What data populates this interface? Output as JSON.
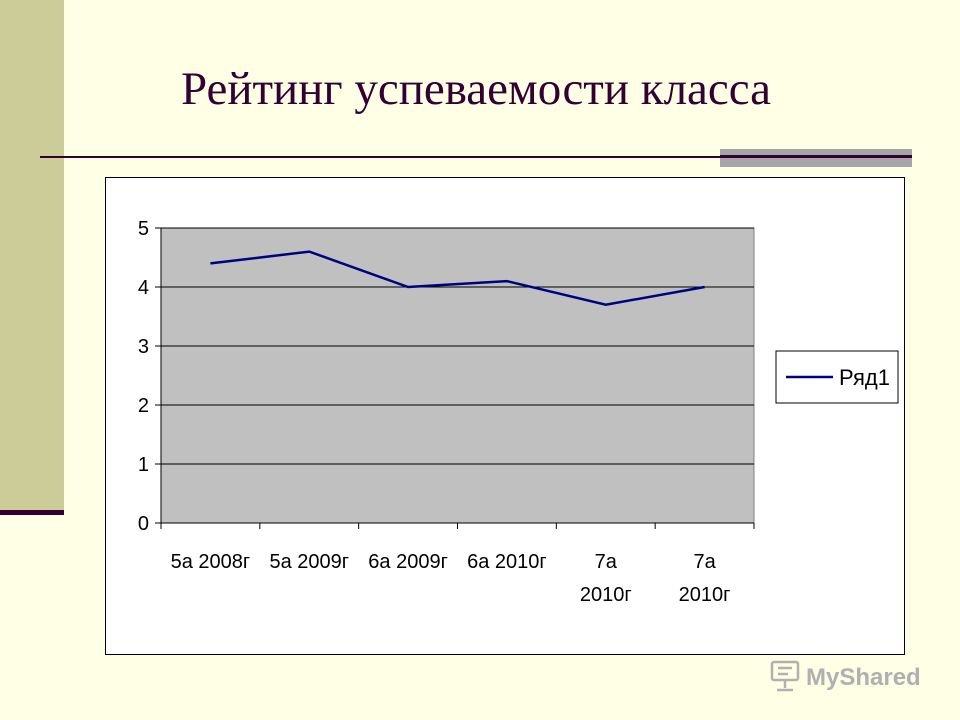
{
  "slide": {
    "title": "Рейтинг успеваемости класса"
  },
  "watermark": {
    "text": "MyShared"
  },
  "colors": {
    "background": "#ffffe5",
    "band": "#cccc99",
    "title": "#330033",
    "plot_area": "#c0c0c0",
    "series_line": "#000080"
  },
  "chart_data": {
    "type": "line",
    "title": "",
    "xlabel": "",
    "ylabel": "",
    "categories": [
      "5а 2008г",
      "5а 2009г",
      "6а 2009г",
      "6а 2010г",
      "7а 2010г",
      "7а 2010г"
    ],
    "category_lines": [
      [
        "5а 2008г"
      ],
      [
        "5а 2009г"
      ],
      [
        "6а 2009г"
      ],
      [
        "6а 2010г"
      ],
      [
        "7а",
        "2010г"
      ],
      [
        "7а",
        "2010г"
      ]
    ],
    "series": [
      {
        "name": "Ряд1",
        "values": [
          4.4,
          4.6,
          4.0,
          4.1,
          3.7,
          4.0
        ]
      }
    ],
    "ylim": [
      0,
      5
    ],
    "yticks": [
      0,
      1,
      2,
      3,
      4,
      5
    ],
    "grid": true,
    "legend": "right"
  }
}
